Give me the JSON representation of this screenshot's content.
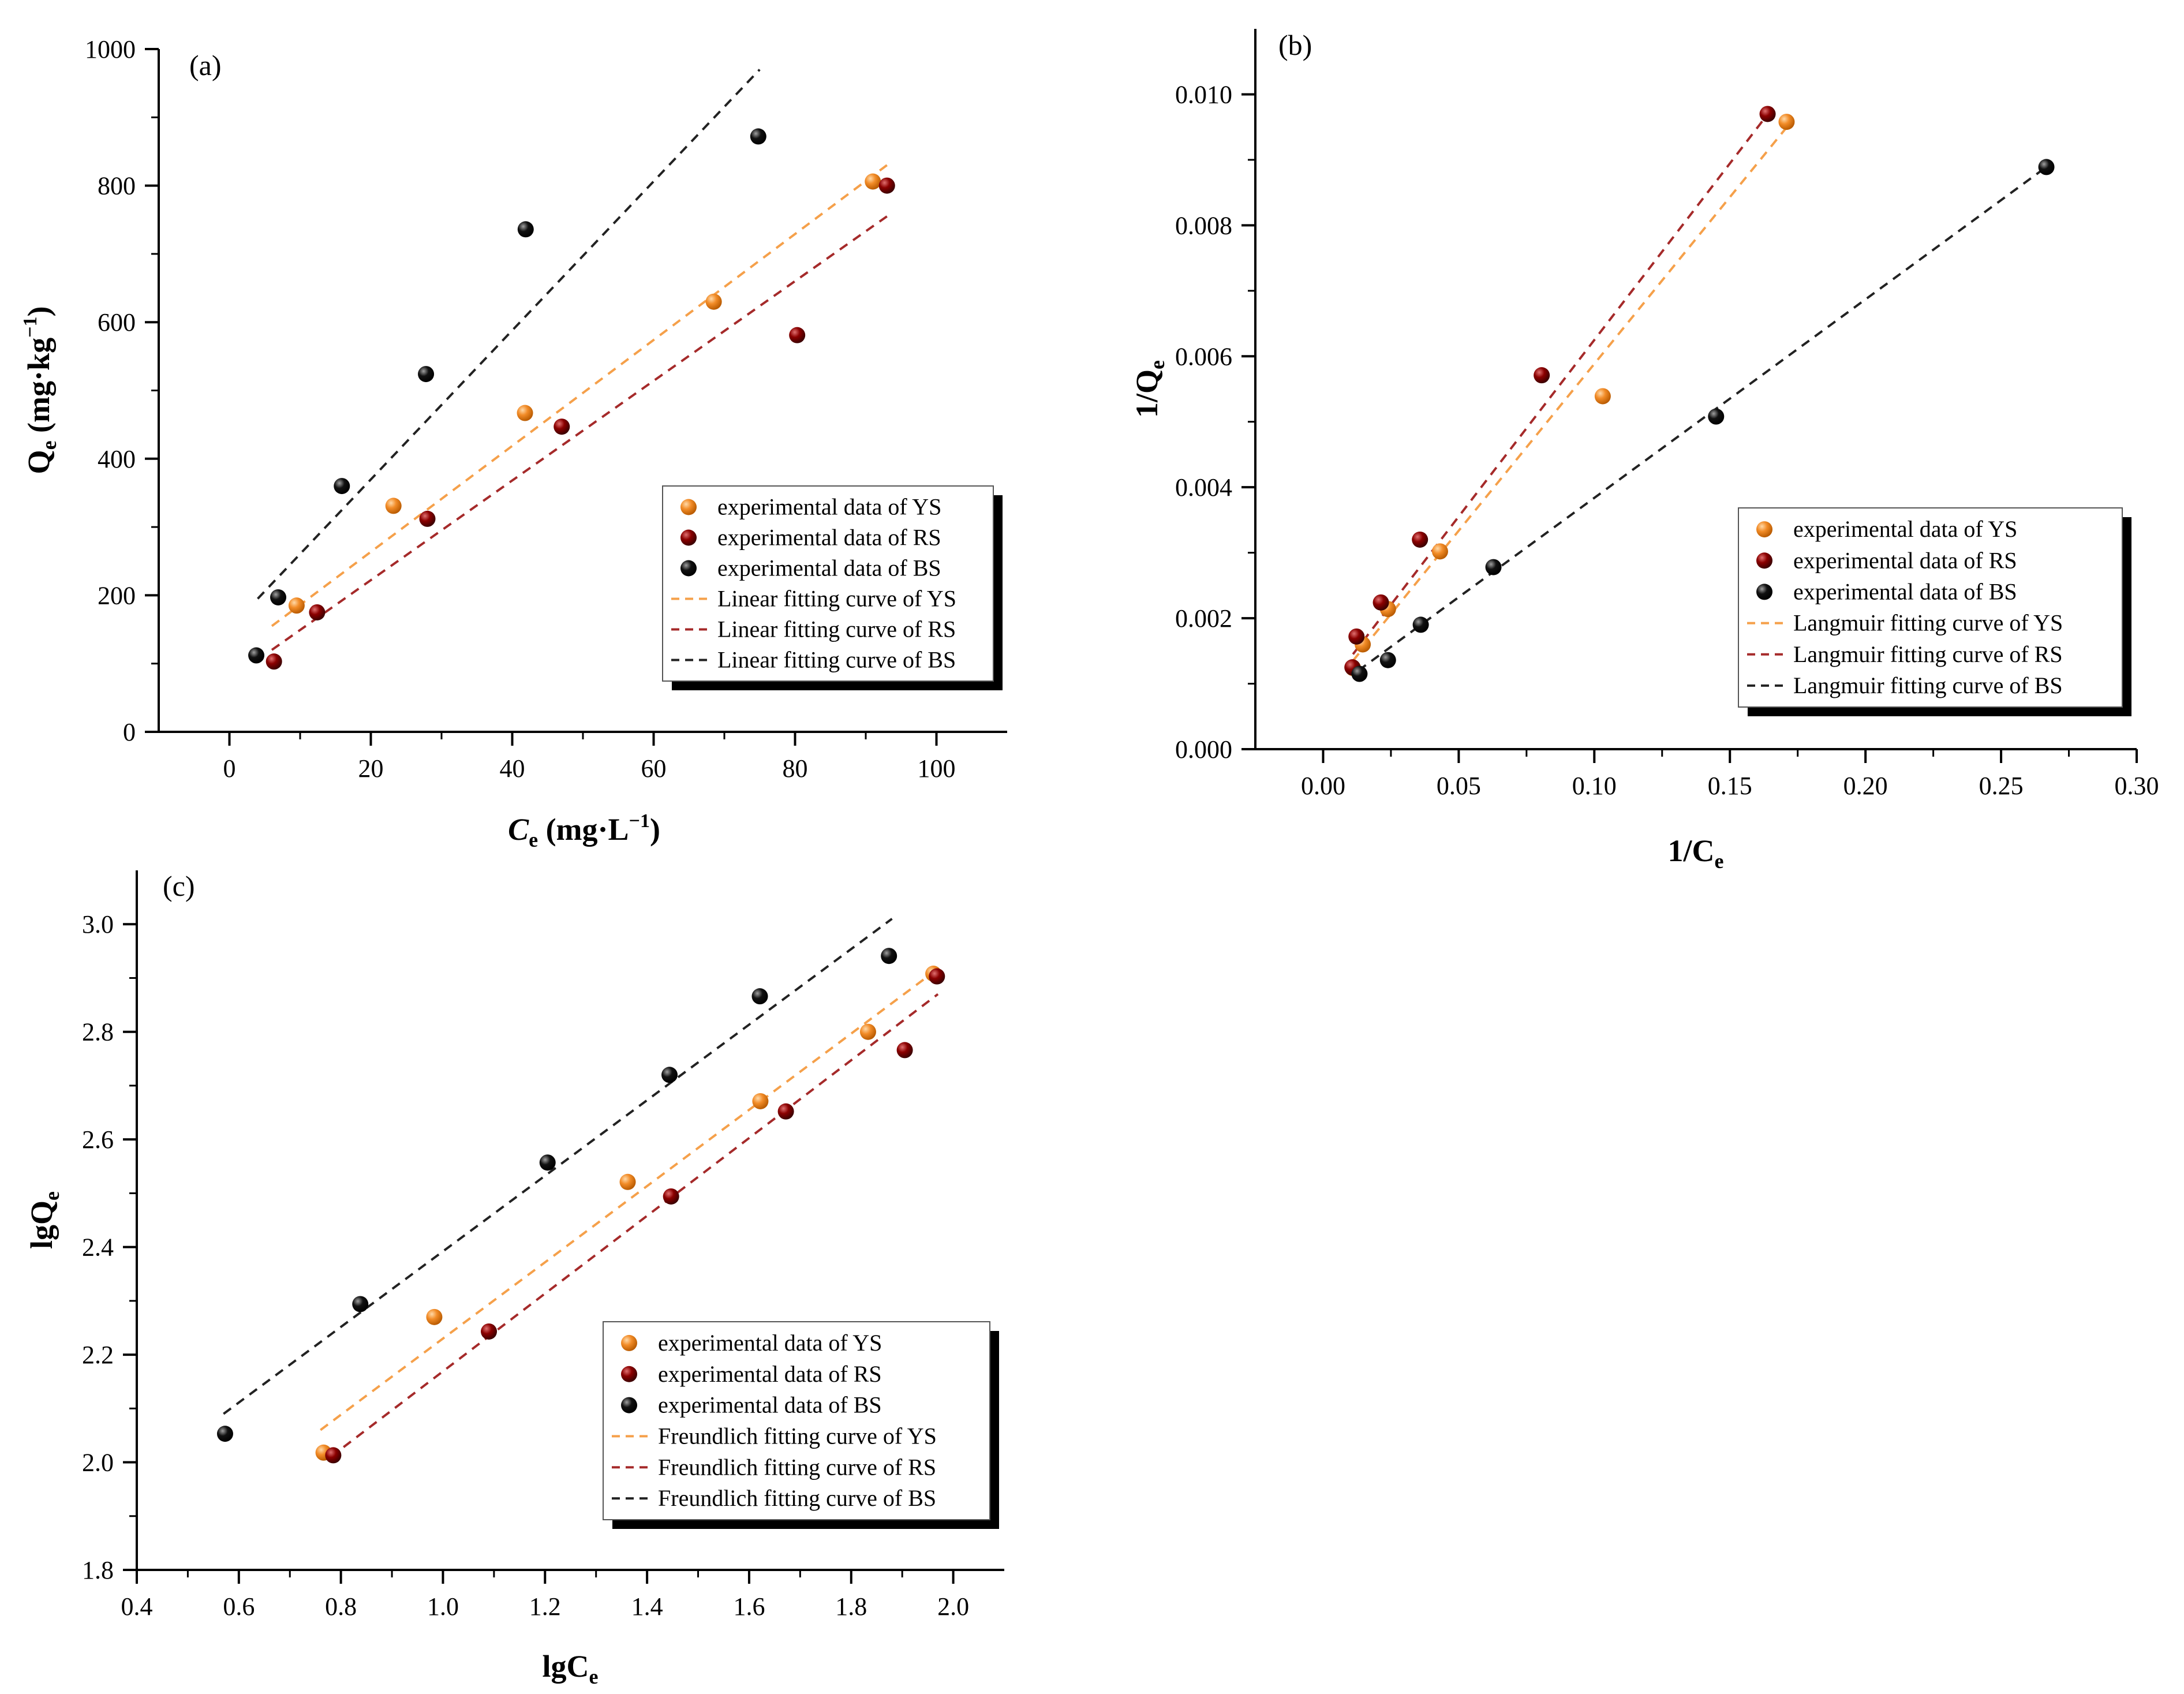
{
  "colors": {
    "YS": "#F28C28",
    "RS": "#8B0000",
    "BS": "#111111",
    "YS_line": "#F5A04A",
    "RS_line": "#A52A2A",
    "BS_line": "#222222"
  },
  "chart_data": [
    {
      "id": "a",
      "type": "scatter",
      "panel_label": "(a)",
      "xlabel_main": "C",
      "xlabel_sub": "e",
      "xlabel_units": " (mg·L",
      "xlabel_sup": "−1",
      "xlabel_close": ")",
      "ylabel_main": "Q",
      "ylabel_sub": "e",
      "ylabel_units": " (mg·kg",
      "ylabel_sup": "−1",
      "ylabel_close": ")",
      "xlim": [
        -10,
        110
      ],
      "ylim": [
        0,
        1000
      ],
      "xticks": [
        0,
        20,
        40,
        60,
        80,
        100
      ],
      "yticks": [
        0,
        200,
        400,
        600,
        800,
        1000
      ],
      "xtick_labels": [
        "0",
        "20",
        "40",
        "60",
        "80",
        "100"
      ],
      "ytick_labels": [
        "0",
        "200",
        "400",
        "600",
        "800",
        "1000"
      ],
      "series": [
        {
          "name": "experimental data of YS",
          "key": "YS",
          "kind": "points",
          "x": [
            9.5,
            23.2,
            41.8,
            68.5,
            91.0
          ],
          "y": [
            185,
            331,
            467,
            630,
            806
          ]
        },
        {
          "name": "experimental data of RS",
          "key": "RS",
          "kind": "points",
          "x": [
            6.3,
            12.4,
            28.0,
            47.0,
            80.3,
            93.0
          ],
          "y": [
            103,
            175,
            312,
            447,
            581,
            800
          ]
        },
        {
          "name": "experimental data of BS",
          "key": "BS",
          "kind": "points",
          "x": [
            3.8,
            6.9,
            15.9,
            27.8,
            41.9,
            74.8
          ],
          "y": [
            112,
            197,
            360,
            524,
            736,
            872
          ]
        },
        {
          "name": "Linear fitting curve of YS",
          "key": "YS",
          "kind": "line",
          "x": [
            6.0,
            93.0
          ],
          "y": [
            155,
            830
          ]
        },
        {
          "name": "Linear fitting curve of RS",
          "key": "RS",
          "kind": "line",
          "x": [
            6.0,
            93.0
          ],
          "y": [
            120,
            755
          ]
        },
        {
          "name": "Linear fitting curve of BS",
          "key": "BS",
          "kind": "line",
          "x": [
            4.0,
            75.0
          ],
          "y": [
            195,
            970
          ]
        }
      ],
      "legend_position": "bottom-right"
    },
    {
      "id": "b",
      "type": "scatter",
      "panel_label": "(b)",
      "xlabel_main": "1/C",
      "xlabel_sub": "e",
      "ylabel_main": "1/Q",
      "ylabel_sub": "e",
      "xlim": [
        -0.025,
        0.3
      ],
      "ylim": [
        0.0,
        0.011
      ],
      "xticks": [
        0.0,
        0.05,
        0.1,
        0.15,
        0.2,
        0.25,
        0.3
      ],
      "yticks": [
        0.0,
        0.002,
        0.004,
        0.006,
        0.008,
        0.01
      ],
      "xtick_labels": [
        "0.00",
        "0.05",
        "0.10",
        "0.15",
        "0.20",
        "0.25",
        "0.30"
      ],
      "ytick_labels": [
        "0.000",
        "0.002",
        "0.004",
        "0.006",
        "0.008",
        "0.010"
      ],
      "series": [
        {
          "name": "experimental data of YS",
          "key": "YS",
          "kind": "points",
          "x": [
            0.011,
            0.0146,
            0.0239,
            0.0431,
            0.1031,
            0.1709
          ],
          "y": [
            0.00124,
            0.0016,
            0.00214,
            0.00302,
            0.00539,
            0.00958
          ]
        },
        {
          "name": "experimental data of RS",
          "key": "RS",
          "kind": "points",
          "x": [
            0.0108,
            0.0123,
            0.0213,
            0.0357,
            0.0806,
            0.1639
          ],
          "y": [
            0.00125,
            0.00172,
            0.00224,
            0.0032,
            0.00571,
            0.0097
          ]
        },
        {
          "name": "experimental data of BS",
          "key": "BS",
          "kind": "points",
          "x": [
            0.0134,
            0.0239,
            0.036,
            0.0628,
            0.1449,
            0.2667
          ],
          "y": [
            0.00115,
            0.00136,
            0.0019,
            0.00278,
            0.00508,
            0.00889
          ]
        },
        {
          "name": "Langmuir fitting curve of YS",
          "key": "YS",
          "kind": "line",
          "x": [
            0.011,
            0.171
          ],
          "y": [
            0.00135,
            0.0095
          ]
        },
        {
          "name": "Langmuir fitting curve of RS",
          "key": "RS",
          "kind": "line",
          "x": [
            0.011,
            0.164
          ],
          "y": [
            0.00145,
            0.0097
          ]
        },
        {
          "name": "Langmuir fitting curve of BS",
          "key": "BS",
          "kind": "line",
          "x": [
            0.013,
            0.267
          ],
          "y": [
            0.0012,
            0.0089
          ]
        }
      ],
      "legend_position": "bottom-right"
    },
    {
      "id": "c",
      "type": "scatter",
      "panel_label": "(c)",
      "xlabel_main": "lgC",
      "xlabel_sub": "e",
      "ylabel_main": "lgQ",
      "ylabel_sub": "e",
      "xlim": [
        0.4,
        2.1
      ],
      "ylim": [
        1.8,
        3.1
      ],
      "xticks": [
        0.4,
        0.6,
        0.8,
        1.0,
        1.2,
        1.4,
        1.6,
        1.8,
        2.0
      ],
      "yticks": [
        1.8,
        2.0,
        2.2,
        2.4,
        2.6,
        2.8,
        3.0
      ],
      "xtick_labels": [
        "0.4",
        "0.6",
        "0.8",
        "1.0",
        "1.2",
        "1.4",
        "1.6",
        "1.8",
        "2.0"
      ],
      "ytick_labels": [
        "1.8",
        "2.0",
        "2.2",
        "2.4",
        "2.6",
        "2.8",
        "3.0"
      ],
      "series": [
        {
          "name": "experimental data of YS",
          "key": "YS",
          "kind": "points",
          "x": [
            0.766,
            0.983,
            1.362,
            1.622,
            1.833,
            1.961
          ],
          "y": [
            2.018,
            2.27,
            2.521,
            2.671,
            2.8,
            2.908
          ]
        },
        {
          "name": "experimental data of RS",
          "key": "RS",
          "kind": "points",
          "x": [
            0.785,
            1.09,
            1.447,
            1.672,
            1.905,
            1.968
          ],
          "y": [
            2.013,
            2.243,
            2.494,
            2.652,
            2.766,
            2.903
          ]
        },
        {
          "name": "experimental data of BS",
          "key": "BS",
          "kind": "points",
          "x": [
            0.573,
            0.838,
            1.205,
            1.444,
            1.621,
            1.874
          ],
          "y": [
            2.053,
            2.294,
            2.557,
            2.72,
            2.866,
            2.941
          ]
        },
        {
          "name": "Freundlich fitting curve of YS",
          "key": "YS",
          "kind": "line",
          "x": [
            0.76,
            1.96
          ],
          "y": [
            2.06,
            2.91
          ]
        },
        {
          "name": "Freundlich fitting curve of RS",
          "key": "RS",
          "kind": "line",
          "x": [
            0.78,
            1.97
          ],
          "y": [
            2.01,
            2.87
          ]
        },
        {
          "name": "Freundlich fitting curve of BS",
          "key": "BS",
          "kind": "line",
          "x": [
            0.57,
            1.88
          ],
          "y": [
            2.09,
            3.01
          ]
        }
      ],
      "legend_position": "bottom-right"
    }
  ]
}
